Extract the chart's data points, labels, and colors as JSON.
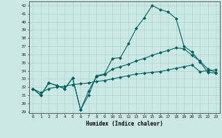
{
  "xlabel": "Humidex (Indice chaleur)",
  "background_color": "#cce8e4",
  "grid_color": "#aad4ce",
  "line_color": "#006060",
  "xlim": [
    -0.5,
    23.5
  ],
  "ylim": [
    28.8,
    42.5
  ],
  "yticks": [
    29,
    30,
    31,
    32,
    33,
    34,
    35,
    36,
    37,
    38,
    39,
    40,
    41,
    42
  ],
  "xticks": [
    0,
    1,
    2,
    3,
    4,
    5,
    6,
    7,
    8,
    9,
    10,
    11,
    12,
    13,
    14,
    15,
    16,
    17,
    18,
    19,
    20,
    21,
    22,
    23
  ],
  "curve1_x": [
    0,
    1,
    2,
    3,
    4,
    5,
    6,
    7,
    8,
    9,
    10,
    11,
    12,
    13,
    14,
    15,
    16,
    17,
    18,
    19,
    20,
    21,
    22,
    23
  ],
  "curve1_y": [
    31.8,
    31.0,
    32.5,
    32.2,
    31.8,
    33.1,
    29.2,
    31.0,
    33.4,
    33.6,
    35.5,
    35.6,
    37.3,
    39.2,
    40.5,
    42.0,
    41.5,
    41.2,
    40.4,
    37.0,
    36.3,
    35.1,
    33.8,
    33.7
  ],
  "curve2_x": [
    0,
    1,
    2,
    3,
    4,
    5,
    6,
    7,
    8,
    9,
    10,
    11,
    12,
    13,
    14,
    15,
    16,
    17,
    18,
    19,
    20,
    21,
    22,
    23
  ],
  "curve2_y": [
    31.8,
    31.0,
    32.5,
    32.2,
    31.8,
    33.1,
    29.2,
    31.5,
    33.3,
    33.5,
    34.2,
    34.5,
    34.8,
    35.2,
    35.5,
    35.9,
    36.2,
    36.5,
    36.8,
    36.7,
    35.9,
    35.2,
    34.2,
    33.8
  ],
  "curve3_x": [
    0,
    1,
    2,
    3,
    4,
    5,
    6,
    7,
    8,
    9,
    10,
    11,
    12,
    13,
    14,
    15,
    16,
    17,
    18,
    19,
    20,
    21,
    22,
    23
  ],
  "curve3_y": [
    31.8,
    31.3,
    31.8,
    32.0,
    32.1,
    32.3,
    32.4,
    32.5,
    32.7,
    32.8,
    33.0,
    33.2,
    33.4,
    33.6,
    33.7,
    33.8,
    33.9,
    34.1,
    34.3,
    34.5,
    34.7,
    33.9,
    34.0,
    34.1
  ]
}
